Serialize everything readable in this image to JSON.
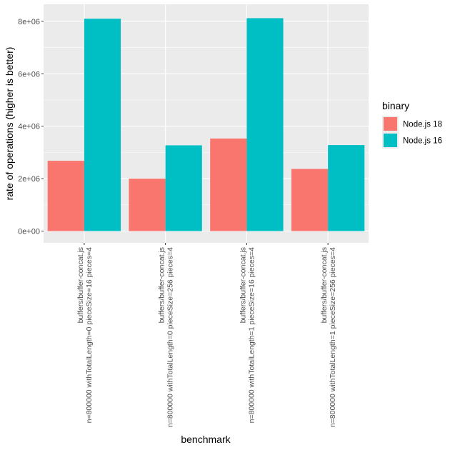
{
  "chart_data": {
    "type": "bar",
    "xlabel": "benchmark",
    "ylabel": "rate of operations (higher is better)",
    "ylim": [
      -450000,
      8650000
    ],
    "y_ticks": [
      0,
      2000000,
      4000000,
      6000000,
      8000000
    ],
    "y_tick_labels": [
      "0e+00",
      "2e+06",
      "4e+06",
      "6e+06",
      "8e+06"
    ],
    "categories": [
      [
        "buffers/buffer-concat.js",
        "n=800000 withTotalLength=0 pieceSize=16 pieces=4"
      ],
      [
        "buffers/buffer-concat.js",
        "n=800000 withTotalLength=0 pieceSize=256 pieces=4"
      ],
      [
        "buffers/buffer-concat.js",
        "n=800000 withTotalLength=1 pieceSize=16 pieces=4"
      ],
      [
        "buffers/buffer-concat.js",
        "n=800000 withTotalLength=1 pieceSize=256 pieces=4"
      ]
    ],
    "legend_title": "binary",
    "legend_position": "right",
    "grid": true,
    "series": [
      {
        "name": "Node.js 18",
        "color": "#F8766D",
        "values": [
          2680000,
          2000000,
          3530000,
          2370000
        ]
      },
      {
        "name": "Node.js 16",
        "color": "#00BFC4",
        "values": [
          8100000,
          3270000,
          8120000,
          3280000
        ]
      }
    ]
  }
}
